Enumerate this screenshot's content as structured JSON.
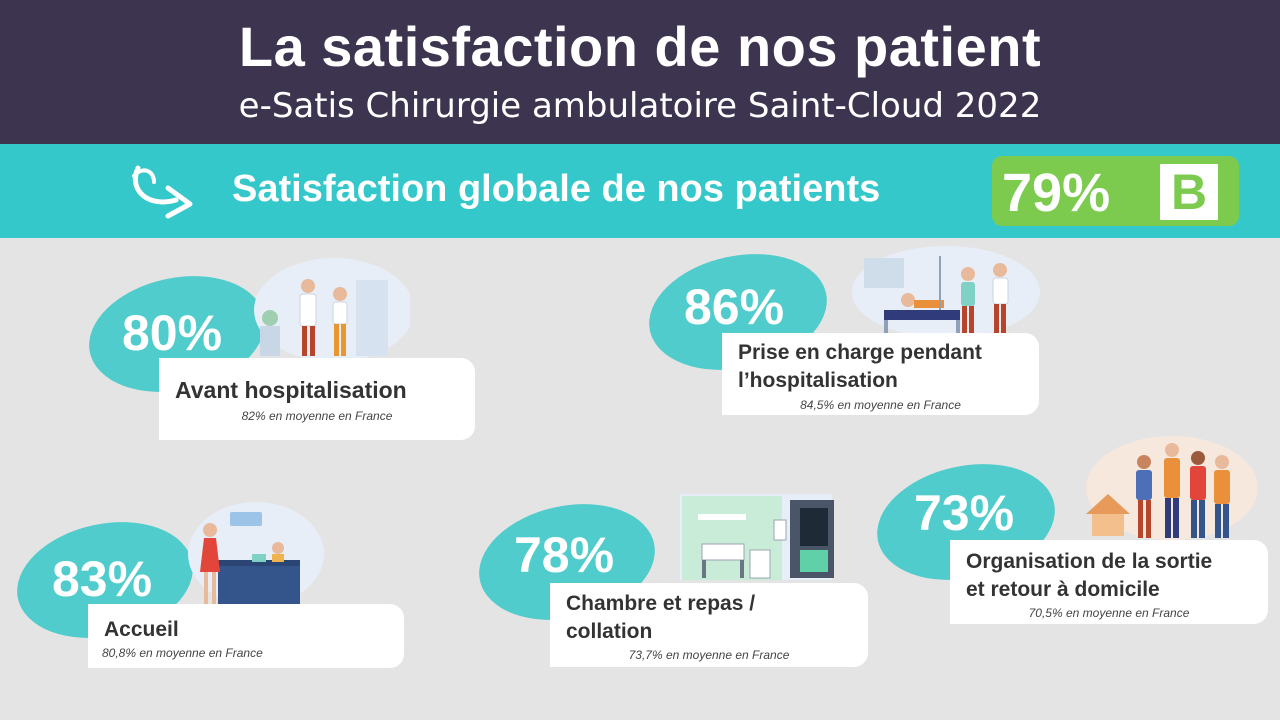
{
  "header": {
    "title": "La satisfaction de nos patient",
    "subtitle": "e-Satis Chirurgie ambulatoire Saint-Cloud 2022"
  },
  "global": {
    "label": "Satisfaction globale de nos patients",
    "score": "79%",
    "grade": "B"
  },
  "colors": {
    "header_bg": "#3d3450",
    "accent_teal": "#35c8cb",
    "blob_teal": "#4fcccb",
    "score_green": "#7ccb4f",
    "page_bg": "#e5e4e4"
  },
  "items": [
    {
      "pct": "80%",
      "title": "Avant hospitalisation",
      "average": "82% en moyenne en France"
    },
    {
      "pct": "86%",
      "title_line1": "Prise en charge pendant",
      "title_line2": "l’hospitalisation",
      "average": "84,5% en moyenne en France"
    },
    {
      "pct": "83%",
      "title": "Accueil",
      "average": "80,8% en moyenne en France"
    },
    {
      "pct": "78%",
      "title_line1": "Chambre et repas /",
      "title_line2": "collation",
      "average": "73,7% en moyenne en France"
    },
    {
      "pct": "73%",
      "title_line1": "Organisation de la sortie",
      "title_line2": "et retour à domicile",
      "average": "70,5% en moyenne en France"
    }
  ]
}
